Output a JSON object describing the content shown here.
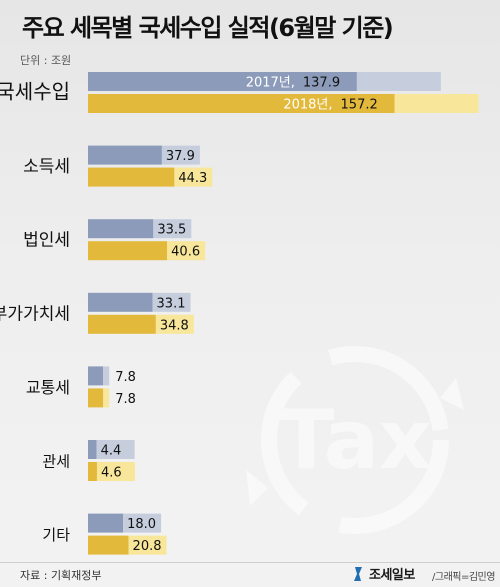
{
  "title": "주요 세목별 국세수입 실적(6월말 기준)",
  "unit": "단위 : 조원",
  "source": "자료 : 기획재정부",
  "brand": "조세일보",
  "credit": "/그래픽=김민영",
  "watermark": "Tax",
  "colors": {
    "series_2017": "#8c9bb9",
    "series_2018": "#e2b93b",
    "bar_tail_2017": "#c6cede",
    "bar_tail_2018": "#f8e79a"
  },
  "chart_data": {
    "type": "bar",
    "orientation": "horizontal",
    "categories": [
      "국세수입",
      "소득세",
      "법인세",
      "부가가치세",
      "교통세",
      "관세",
      "기타"
    ],
    "series": [
      {
        "name": "2017년",
        "values": [
          137.9,
          37.9,
          33.5,
          33.1,
          7.8,
          4.4,
          18.0
        ]
      },
      {
        "name": "2018년",
        "values": [
          157.2,
          44.3,
          40.6,
          34.8,
          7.8,
          4.6,
          20.8
        ]
      }
    ],
    "value_labels": [
      [
        "137.9",
        "37.9",
        "33.5",
        "33.1",
        "7.8",
        "4.4",
        "18.0"
      ],
      [
        "157.2",
        "44.3",
        "40.6",
        "34.8",
        "7.8",
        "4.6",
        "20.8"
      ]
    ],
    "series_labels_on_first_bar": [
      "2017년,",
      "2018년,"
    ],
    "xlim": [
      0,
      160
    ]
  }
}
